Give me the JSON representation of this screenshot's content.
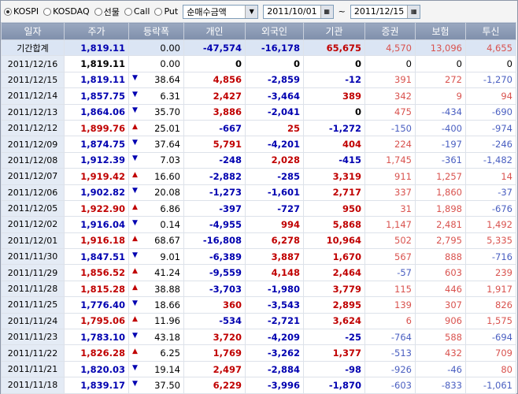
{
  "toolbar": {
    "markets": [
      {
        "label": "KOSPI",
        "selected": true
      },
      {
        "label": "KOSDAQ"
      },
      {
        "label": "선물"
      },
      {
        "label": "Call"
      },
      {
        "label": "Put"
      }
    ],
    "metric": "순매수금액",
    "from": "2011/10/01",
    "sep": "~",
    "to": "2011/12/15"
  },
  "table": {
    "headers": [
      "일자",
      "주가",
      "등락폭",
      "개인",
      "외국인",
      "기관",
      "증권",
      "보험",
      "투신"
    ],
    "rows": [
      {
        "cells": [
          "기간합계",
          "1,819.11",
          "0.00",
          "-47,574",
          "-16,178",
          "65,675",
          "4,570",
          "13,096",
          "4,655"
        ]
      },
      {
        "cells": [
          "2011/12/16",
          "1,819.11",
          "0.00",
          "0",
          "0",
          "0",
          "0",
          "0",
          "0"
        ]
      },
      {
        "cells": [
          "2011/12/15",
          "1,819.11",
          "38.64",
          "4,856",
          "-2,859",
          "-12",
          "391",
          "272",
          "-1,270"
        ],
        "arrow": "▼"
      },
      {
        "cells": [
          "2011/12/14",
          "1,857.75",
          "6.31",
          "2,427",
          "-3,464",
          "389",
          "342",
          "9",
          "94"
        ],
        "arrow": "▼"
      },
      {
        "cells": [
          "2011/12/13",
          "1,864.06",
          "35.70",
          "3,886",
          "-2,041",
          "0",
          "475",
          "-434",
          "-690"
        ],
        "arrow": "▼"
      },
      {
        "cells": [
          "2011/12/12",
          "1,899.76",
          "25.01",
          "-667",
          "25",
          "-1,272",
          "-150",
          "-400",
          "-974"
        ],
        "arrow": "▲"
      },
      {
        "cells": [
          "2011/12/09",
          "1,874.75",
          "37.64",
          "5,791",
          "-4,201",
          "404",
          "224",
          "-197",
          "-246"
        ],
        "arrow": "▼"
      },
      {
        "cells": [
          "2011/12/08",
          "1,912.39",
          "7.03",
          "-248",
          "2,028",
          "-415",
          "1,745",
          "-361",
          "-1,482"
        ],
        "arrow": "▼"
      },
      {
        "cells": [
          "2011/12/07",
          "1,919.42",
          "16.60",
          "-2,882",
          "-285",
          "3,319",
          "911",
          "1,257",
          "14"
        ],
        "arrow": "▲"
      },
      {
        "cells": [
          "2011/12/06",
          "1,902.82",
          "20.08",
          "-1,273",
          "-1,601",
          "2,717",
          "337",
          "1,860",
          "-37"
        ],
        "arrow": "▼"
      },
      {
        "cells": [
          "2011/12/05",
          "1,922.90",
          "6.86",
          "-397",
          "-727",
          "950",
          "31",
          "1,898",
          "-676"
        ],
        "arrow": "▲"
      },
      {
        "cells": [
          "2011/12/02",
          "1,916.04",
          "0.14",
          "-4,955",
          "994",
          "5,868",
          "1,147",
          "2,481",
          "1,492"
        ],
        "arrow": "▼"
      },
      {
        "cells": [
          "2011/12/01",
          "1,916.18",
          "68.67",
          "-16,808",
          "6,278",
          "10,964",
          "502",
          "2,795",
          "5,335"
        ],
        "arrow": "▲"
      },
      {
        "cells": [
          "2011/11/30",
          "1,847.51",
          "9.01",
          "-6,389",
          "3,887",
          "1,670",
          "567",
          "888",
          "-716"
        ],
        "arrow": "▼"
      },
      {
        "cells": [
          "2011/11/29",
          "1,856.52",
          "41.24",
          "-9,559",
          "4,148",
          "2,464",
          "-57",
          "603",
          "239"
        ],
        "arrow": "▲"
      },
      {
        "cells": [
          "2011/11/28",
          "1,815.28",
          "38.88",
          "-3,703",
          "-1,980",
          "3,779",
          "115",
          "446",
          "1,917"
        ],
        "arrow": "▲"
      },
      {
        "cells": [
          "2011/11/25",
          "1,776.40",
          "18.66",
          "360",
          "-3,543",
          "2,895",
          "139",
          "307",
          "826"
        ],
        "arrow": "▼"
      },
      {
        "cells": [
          "2011/11/24",
          "1,795.06",
          "11.96",
          "-534",
          "-2,721",
          "3,624",
          "6",
          "906",
          "1,575"
        ],
        "arrow": "▲"
      },
      {
        "cells": [
          "2011/11/23",
          "1,783.10",
          "43.18",
          "3,720",
          "-4,209",
          "-25",
          "-764",
          "588",
          "-694"
        ],
        "arrow": "▼"
      },
      {
        "cells": [
          "2011/11/22",
          "1,826.28",
          "6.25",
          "1,769",
          "-3,262",
          "1,377",
          "-513",
          "432",
          "709"
        ],
        "arrow": "▲"
      },
      {
        "cells": [
          "2011/11/21",
          "1,820.03",
          "19.14",
          "2,497",
          "-2,884",
          "-98",
          "-926",
          "-46",
          "80"
        ],
        "arrow": "▼"
      },
      {
        "cells": [
          "2011/11/18",
          "1,839.17",
          "37.50",
          "6,229",
          "-3,996",
          "-1,870",
          "-603",
          "-833",
          "-1,061"
        ],
        "arrow": "▼"
      }
    ]
  }
}
